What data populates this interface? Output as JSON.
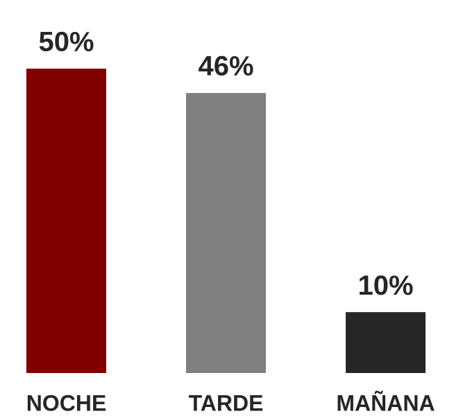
{
  "chart_data": {
    "type": "bar",
    "categories": [
      "NOCHE",
      "TARDE",
      "MAÑANA"
    ],
    "values": [
      50,
      46,
      10
    ],
    "value_labels": [
      "50%",
      "46%",
      "10%"
    ],
    "colors": [
      "#800000",
      "#808080",
      "#262626"
    ],
    "ylim": [
      0,
      50
    ]
  }
}
